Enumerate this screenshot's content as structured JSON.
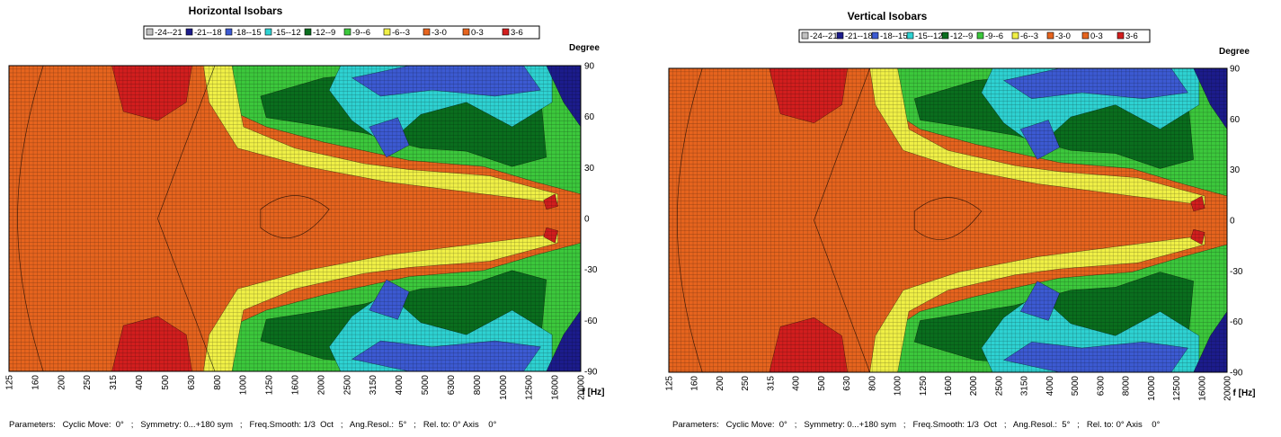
{
  "chart_data": [
    {
      "type": "heatmap",
      "title": "Horizontal Isobars",
      "ylabel": "Degree",
      "xlabel": "f [Hz]",
      "x_ticks": [
        "125",
        "160",
        "200",
        "250",
        "315",
        "400",
        "500",
        "630",
        "800",
        "1000",
        "1250",
        "1600",
        "2000",
        "2500",
        "3150",
        "4000",
        "5000",
        "6300",
        "8000",
        "10000",
        "12500",
        "16000",
        "20000"
      ],
      "y_ticks": [
        "90",
        "60",
        "30",
        "0",
        "-30",
        "-60",
        "-90"
      ],
      "ylim": [
        -90,
        90
      ],
      "x_scale": "log",
      "legend": [
        "-24--21",
        "-21--18",
        "-18--15",
        "-15--12",
        "-12--9",
        "-9--6",
        "-6--3",
        "-3-0",
        "0-3",
        "3-6"
      ],
      "legend_placement": "top",
      "parameters": "Parameters:   Cyclic Move:  0°   ;   Symmetry: 0...+180 sym   ;   Freq.Smooth: 1/3  Oct   ;   Ang.Resol.:  5°   ;   Rel. to: 0° Axis    0°"
    },
    {
      "type": "heatmap",
      "title": "Vertical Isobars",
      "ylabel": "Degree",
      "xlabel": "f [Hz]",
      "x_ticks": [
        "125",
        "160",
        "200",
        "250",
        "315",
        "400",
        "500",
        "630",
        "800",
        "1000",
        "1250",
        "1600",
        "2000",
        "2500",
        "3150",
        "4000",
        "5000",
        "6300",
        "8000",
        "10000",
        "12500",
        "16000",
        "20000"
      ],
      "y_ticks": [
        "90",
        "60",
        "30",
        "0",
        "-30",
        "-60",
        "-90"
      ],
      "ylim": [
        -90,
        90
      ],
      "x_scale": "log",
      "legend": [
        "-24--21",
        "-21--18",
        "-18--15",
        "-15--12",
        "-12--9",
        "-9--6",
        "-6--3",
        "-3-0",
        "0-3",
        "3-6"
      ],
      "legend_placement": "top",
      "parameters": "Parameters:   Cyclic Move:  0°   ;   Symmetry: 0...+180 sym   ;   Freq.Smooth: 1/3  Oct   ;   Ang.Resol.:  5°   ;   Rel. to: 0° Axis    0°"
    }
  ],
  "colors": {
    "-24--21": "#c0c0c0",
    "-21--18": "#1c1c8c",
    "-18--15": "#3c5ad2",
    "-15--12": "#2ed2d2",
    "-12--9": "#0a6e1e",
    "-9--6": "#3cc83c",
    "-6--3": "#f0f046",
    "-3-0": "#e6641e",
    "0-3": "#e6641e",
    "3-6": "#d21e1e"
  }
}
